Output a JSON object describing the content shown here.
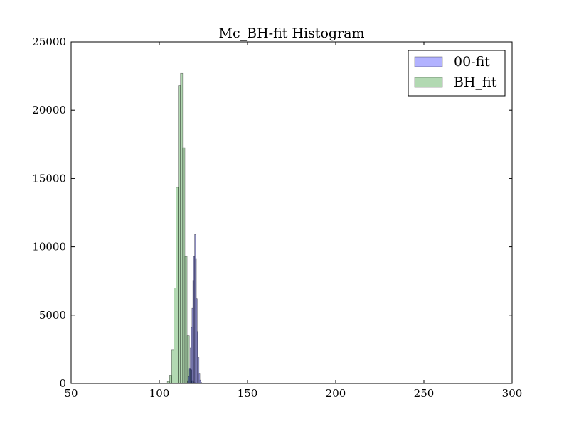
{
  "chart_data": {
    "type": "bar",
    "title": "Mc_BH-fit Histogram",
    "xlabel": "",
    "ylabel": "",
    "xlim": [
      50,
      300
    ],
    "ylim": [
      0,
      25000
    ],
    "xticks": [
      "50",
      "100",
      "150",
      "200",
      "250",
      "300"
    ],
    "yticks": [
      "0",
      "5000",
      "10000",
      "15000",
      "20000",
      "25000"
    ],
    "grid": false,
    "legend_position": "top-right",
    "series": [
      {
        "name": "BH_fit",
        "color": "#008000",
        "bin_width": 1.25,
        "bins": [
          {
            "x0": 104.5,
            "value": 150
          },
          {
            "x0": 105.75,
            "value": 600
          },
          {
            "x0": 107.0,
            "value": 2450
          },
          {
            "x0": 108.25,
            "value": 7000
          },
          {
            "x0": 109.5,
            "value": 14350
          },
          {
            "x0": 110.75,
            "value": 21800
          },
          {
            "x0": 112.0,
            "value": 22700
          },
          {
            "x0": 113.25,
            "value": 17250
          },
          {
            "x0": 114.5,
            "value": 9300
          },
          {
            "x0": 115.75,
            "value": 3500
          },
          {
            "x0": 117.0,
            "value": 1000
          },
          {
            "x0": 118.25,
            "value": 200
          },
          {
            "x0": 119.5,
            "value": 50
          }
        ]
      },
      {
        "name": "00-fit",
        "color": "#0000ff",
        "bin_width": 0.5,
        "bins": [
          {
            "x0": 116.0,
            "value": 200
          },
          {
            "x0": 116.5,
            "value": 500
          },
          {
            "x0": 117.0,
            "value": 1100
          },
          {
            "x0": 117.5,
            "value": 2600
          },
          {
            "x0": 118.0,
            "value": 4100
          },
          {
            "x0": 118.5,
            "value": 5500
          },
          {
            "x0": 119.0,
            "value": 7500
          },
          {
            "x0": 119.5,
            "value": 9300
          },
          {
            "x0": 120.0,
            "value": 10900
          },
          {
            "x0": 120.5,
            "value": 9100
          },
          {
            "x0": 121.0,
            "value": 6200
          },
          {
            "x0": 121.5,
            "value": 3800
          },
          {
            "x0": 122.0,
            "value": 1900
          },
          {
            "x0": 122.5,
            "value": 700
          },
          {
            "x0": 123.0,
            "value": 250
          },
          {
            "x0": 123.5,
            "value": 80
          }
        ]
      }
    ]
  }
}
